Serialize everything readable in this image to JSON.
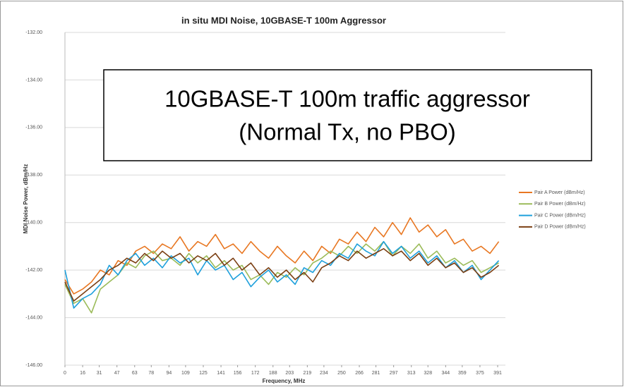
{
  "chart_data": {
    "type": "line",
    "title": "in situ MDI Noise, 10GBASE-T 100m Aggressor",
    "x_label": "Frequency, MHz",
    "y_label": "MDI Noise Power, dBm/Hz",
    "annotation": [
      "10GBASE-T 100m traffic aggressor",
      "(Normal Tx, no PBO)"
    ],
    "xlim": [
      0,
      398
    ],
    "ylim": [
      -146,
      -132
    ],
    "xticks": [
      0,
      16,
      31,
      47,
      63,
      78,
      94,
      109,
      125,
      141,
      156,
      172,
      188,
      203,
      219,
      234,
      250,
      266,
      281,
      297,
      313,
      328,
      344,
      359,
      375,
      391
    ],
    "yticks": [
      {
        "value": -146,
        "label": "-146.00"
      },
      {
        "value": -144,
        "label": "-144.00"
      },
      {
        "value": -142,
        "label": "-142.00"
      },
      {
        "value": -140,
        "label": "-140.00"
      },
      {
        "value": -138,
        "label": "-138.00"
      },
      {
        "value": -136,
        "label": "-136.00"
      },
      {
        "value": -134,
        "label": "-134.00"
      },
      {
        "value": -132,
        "label": "-132.00"
      }
    ],
    "grid": true,
    "legend": "right",
    "x": [
      0,
      8,
      16,
      24,
      32,
      40,
      48,
      56,
      64,
      72,
      80,
      88,
      96,
      104,
      112,
      120,
      128,
      136,
      144,
      152,
      160,
      168,
      176,
      184,
      192,
      200,
      208,
      216,
      224,
      232,
      240,
      248,
      256,
      264,
      272,
      280,
      288,
      296,
      304,
      312,
      320,
      328,
      336,
      344,
      352,
      360,
      368,
      376,
      384,
      392
    ],
    "series": [
      {
        "name": "Pair A Power  (dBm/Hz)",
        "color": "#e87722",
        "values": [
          -142.4,
          -143.0,
          -142.8,
          -142.5,
          -142.0,
          -142.2,
          -141.6,
          -141.8,
          -141.2,
          -141.0,
          -141.3,
          -140.9,
          -141.1,
          -140.6,
          -141.2,
          -140.8,
          -141.0,
          -140.5,
          -141.1,
          -140.9,
          -141.3,
          -140.8,
          -141.2,
          -141.5,
          -141.0,
          -141.4,
          -141.7,
          -141.2,
          -141.6,
          -141.0,
          -141.3,
          -140.7,
          -140.9,
          -140.4,
          -140.8,
          -140.2,
          -140.6,
          -140.0,
          -140.5,
          -139.8,
          -140.4,
          -140.1,
          -140.6,
          -140.3,
          -140.9,
          -140.7,
          -141.2,
          -141.0,
          -141.3,
          -140.8
        ]
      },
      {
        "name": "Pair B Power  (dBm/Hz)",
        "color": "#9bbb59",
        "values": [
          -142.6,
          -143.4,
          -143.2,
          -143.8,
          -142.8,
          -142.5,
          -142.2,
          -141.7,
          -141.9,
          -141.4,
          -141.2,
          -141.6,
          -141.5,
          -141.8,
          -141.3,
          -141.7,
          -141.4,
          -141.9,
          -141.6,
          -142.0,
          -141.8,
          -142.4,
          -142.2,
          -142.6,
          -142.1,
          -142.3,
          -141.9,
          -142.2,
          -141.7,
          -141.5,
          -141.2,
          -141.4,
          -141.0,
          -141.3,
          -140.9,
          -141.2,
          -140.8,
          -141.4,
          -141.0,
          -141.3,
          -140.9,
          -141.5,
          -141.2,
          -141.7,
          -141.5,
          -141.8,
          -141.6,
          -142.1,
          -141.9,
          -141.7
        ]
      },
      {
        "name": "Pair C Power  (dBm/Hz)",
        "color": "#1ea0dc",
        "values": [
          -142.0,
          -143.6,
          -143.2,
          -143.0,
          -142.6,
          -141.8,
          -142.2,
          -141.6,
          -141.3,
          -141.8,
          -141.5,
          -141.9,
          -141.4,
          -141.7,
          -141.5,
          -142.2,
          -141.6,
          -142.0,
          -141.8,
          -142.4,
          -142.1,
          -142.7,
          -142.3,
          -142.0,
          -142.5,
          -142.2,
          -142.6,
          -141.9,
          -142.1,
          -141.6,
          -141.8,
          -141.3,
          -141.5,
          -140.9,
          -141.2,
          -141.4,
          -140.8,
          -141.3,
          -141.0,
          -141.5,
          -141.2,
          -141.7,
          -141.4,
          -141.9,
          -141.6,
          -142.1,
          -141.8,
          -142.4,
          -142.0,
          -141.6
        ]
      },
      {
        "name": "Pair D Power  (dBm/Hz)",
        "color": "#7b3f13",
        "values": [
          -142.5,
          -143.3,
          -143.0,
          -142.7,
          -142.4,
          -142.0,
          -141.8,
          -141.5,
          -141.7,
          -141.3,
          -141.6,
          -141.2,
          -141.5,
          -141.3,
          -141.7,
          -141.4,
          -141.6,
          -141.3,
          -141.8,
          -141.5,
          -142.0,
          -141.7,
          -142.2,
          -141.9,
          -142.3,
          -142.0,
          -142.4,
          -142.1,
          -142.5,
          -141.9,
          -141.7,
          -141.4,
          -141.6,
          -141.2,
          -141.5,
          -141.3,
          -141.1,
          -141.4,
          -141.2,
          -141.6,
          -141.3,
          -141.8,
          -141.5,
          -141.9,
          -141.7,
          -142.1,
          -141.9,
          -142.3,
          -142.1,
          -141.8
        ]
      }
    ]
  }
}
